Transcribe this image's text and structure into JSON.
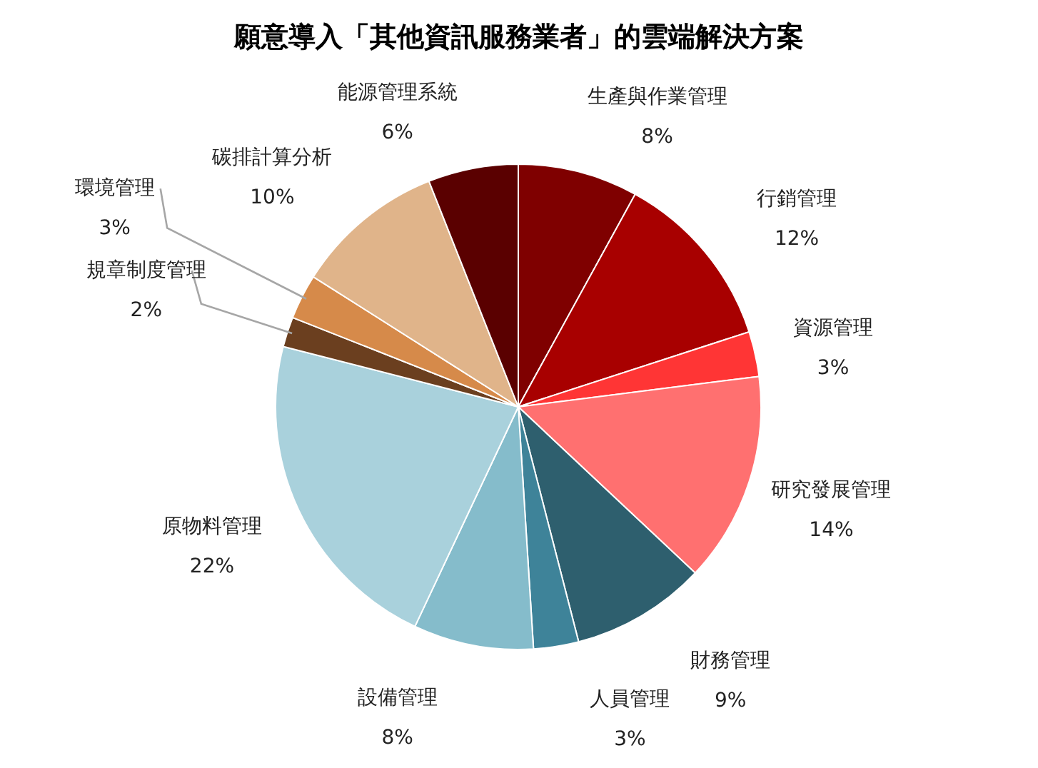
{
  "chart_data": {
    "type": "pie",
    "title": "願意導入「其他資訊服務業者」的雲端解決方案",
    "categories": [
      "生產與作業管理",
      "行銷管理",
      "資源管理",
      "研究發展管理",
      "財務管理",
      "人員管理",
      "設備管理",
      "原物料管理",
      "規章制度管理",
      "環境管理",
      "碳排計算分析",
      "能源管理系統"
    ],
    "values": [
      8,
      12,
      3,
      14,
      9,
      3,
      8,
      22,
      2,
      3,
      10,
      6
    ],
    "value_labels": [
      "8%",
      "12%",
      "3%",
      "14%",
      "9%",
      "3%",
      "8%",
      "22%",
      "2%",
      "3%",
      "10%",
      "6%"
    ],
    "colors": [
      "#7f0000",
      "#a80000",
      "#ff3535",
      "#ff7070",
      "#2e5f6e",
      "#3e8399",
      "#85bccb",
      "#a9d1dc",
      "#6b3f1f",
      "#d68a4a",
      "#e0b48a",
      "#5a0000"
    ]
  }
}
